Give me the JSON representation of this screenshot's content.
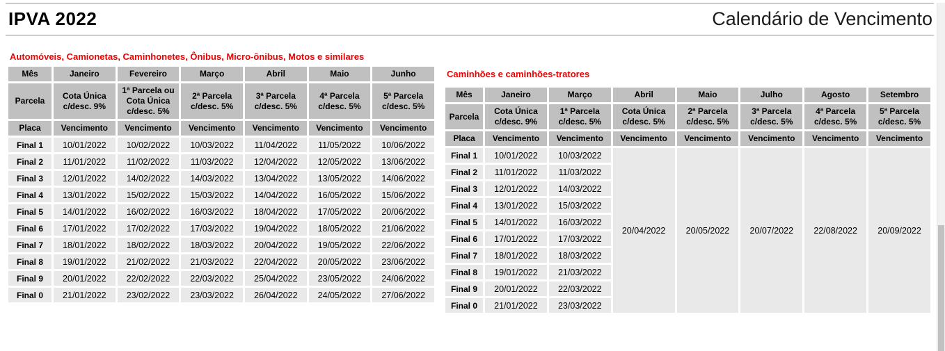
{
  "header": {
    "title": "IPVA 2022",
    "subtitle": "Calendário de Vencimento"
  },
  "labels": {
    "mes": "Mês",
    "parcela": "Parcela",
    "placa": "Placa",
    "vencimento": "Vencimento"
  },
  "tables": [
    {
      "caption": "Automóveis, Camionetas, Caminhonetes, Ônibus, Micro-ônibus, Motos e similares",
      "months": [
        "Janeiro",
        "Fevereiro",
        "Março",
        "Abril",
        "Maio",
        "Junho"
      ],
      "parcelas": [
        "Cota Única c/desc. 9%",
        "1ª Parcela ou Cota Única c/desc. 5%",
        "2ª Parcela c/desc. 5%",
        "3ª Parcela c/desc. 5%",
        "4ª Parcela c/desc. 5%",
        "5ª Parcela c/desc. 5%"
      ],
      "rows": [
        {
          "placa": "Final 1",
          "dates": [
            "10/01/2022",
            "10/02/2022",
            "10/03/2022",
            "11/04/2022",
            "11/05/2022",
            "10/06/2022"
          ]
        },
        {
          "placa": "Final 2",
          "dates": [
            "11/01/2022",
            "11/02/2022",
            "11/03/2022",
            "12/04/2022",
            "12/05/2022",
            "13/06/2022"
          ]
        },
        {
          "placa": "Final 3",
          "dates": [
            "12/01/2022",
            "14/02/2022",
            "14/03/2022",
            "13/04/2022",
            "13/05/2022",
            "14/06/2022"
          ]
        },
        {
          "placa": "Final 4",
          "dates": [
            "13/01/2022",
            "15/02/2022",
            "15/03/2022",
            "14/04/2022",
            "16/05/2022",
            "15/06/2022"
          ]
        },
        {
          "placa": "Final 5",
          "dates": [
            "14/01/2022",
            "16/02/2022",
            "16/03/2022",
            "18/04/2022",
            "17/05/2022",
            "20/06/2022"
          ]
        },
        {
          "placa": "Final 6",
          "dates": [
            "17/01/2022",
            "17/02/2022",
            "17/03/2022",
            "19/04/2022",
            "18/05/2022",
            "21/06/2022"
          ]
        },
        {
          "placa": "Final 7",
          "dates": [
            "18/01/2022",
            "18/02/2022",
            "18/03/2022",
            "20/04/2022",
            "19/05/2022",
            "22/06/2022"
          ]
        },
        {
          "placa": "Final 8",
          "dates": [
            "19/01/2022",
            "21/02/2022",
            "21/03/2022",
            "22/04/2022",
            "20/05/2022",
            "23/06/2022"
          ]
        },
        {
          "placa": "Final 9",
          "dates": [
            "20/01/2022",
            "22/02/2022",
            "22/03/2022",
            "25/04/2022",
            "23/05/2022",
            "24/06/2022"
          ]
        },
        {
          "placa": "Final 0",
          "dates": [
            "21/01/2022",
            "23/02/2022",
            "23/03/2022",
            "26/04/2022",
            "24/05/2022",
            "27/06/2022"
          ]
        }
      ]
    },
    {
      "caption": "Caminhões e caminhões-tratores",
      "months": [
        "Janeiro",
        "Março",
        "Abril",
        "Maio",
        "Julho",
        "Agosto",
        "Setembro"
      ],
      "parcelas": [
        "Cota Única c/desc. 9%",
        "1ª Parcela c/desc. 5%",
        "Cota Única c/desc. 5%",
        "2ª Parcela c/desc. 5%",
        "3ª Parcela c/desc. 5%",
        "4ª Parcela c/desc. 5%",
        "5ª Parcela c/desc. 5%"
      ],
      "rows": [
        {
          "placa": "Final 1",
          "dates": [
            "10/01/2022",
            "10/03/2022"
          ]
        },
        {
          "placa": "Final 2",
          "dates": [
            "11/01/2022",
            "11/03/2022"
          ]
        },
        {
          "placa": "Final 3",
          "dates": [
            "12/01/2022",
            "14/03/2022"
          ]
        },
        {
          "placa": "Final 4",
          "dates": [
            "13/01/2022",
            "15/03/2022"
          ]
        },
        {
          "placa": "Final 5",
          "dates": [
            "14/01/2022",
            "16/03/2022"
          ]
        },
        {
          "placa": "Final 6",
          "dates": [
            "17/01/2022",
            "17/03/2022"
          ]
        },
        {
          "placa": "Final 7",
          "dates": [
            "18/01/2022",
            "18/03/2022"
          ]
        },
        {
          "placa": "Final 8",
          "dates": [
            "19/01/2022",
            "21/03/2022"
          ]
        },
        {
          "placa": "Final 9",
          "dates": [
            "20/01/2022",
            "22/03/2022"
          ]
        },
        {
          "placa": "Final 0",
          "dates": [
            "21/01/2022",
            "23/03/2022"
          ]
        }
      ],
      "merged_dates": [
        "20/04/2022",
        "20/05/2022",
        "20/07/2022",
        "22/08/2022",
        "20/09/2022"
      ]
    }
  ],
  "colors": {
    "accent_red": "#f00000",
    "header_cell_bg": "#c0c0c0",
    "data_cell_bg": "#e9e9e9",
    "scrollbar_track": "#f1f1f1",
    "scrollbar_thumb": "#c1c1c1"
  }
}
